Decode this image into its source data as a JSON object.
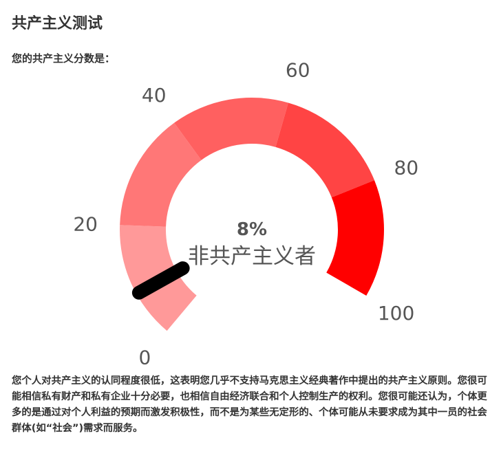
{
  "page_title": "共产主义测试",
  "score_label": "您的共产主义分数是：",
  "gauge": {
    "score_percent": 8,
    "score_text": "8%",
    "category": "非共产主义者",
    "min": 0,
    "max": 100,
    "tick_labels": [
      "0",
      "20",
      "40",
      "60",
      "80",
      "100"
    ],
    "tick_values": [
      0,
      20,
      40,
      60,
      80,
      100
    ],
    "bands": [
      {
        "from": 0,
        "to": 20,
        "color": "#ff9999"
      },
      {
        "from": 20,
        "to": 40,
        "color": "#ff7777"
      },
      {
        "from": 40,
        "to": 60,
        "color": "#ff6060"
      },
      {
        "from": 60,
        "to": 80,
        "color": "#ff4444"
      },
      {
        "from": 80,
        "to": 100,
        "color": "#ff0000"
      }
    ],
    "needle_color": "#000000",
    "text_color": "#555555"
  },
  "description": "您个人对共产主义的认同程度很低，这表明您几乎不支持马克思主义经典著作中提出的共产主义原则。您很可能相信私有财产和私有企业十分必要，也相信自由经济联合和个人控制生产的权利。您很可能还认为，个体更多的是通过对个人利益的预期而激发积极性，而不是为某些无定形的、个体可能从未要求成为其中一员的社会群体(如“社会”)需求而服务。"
}
